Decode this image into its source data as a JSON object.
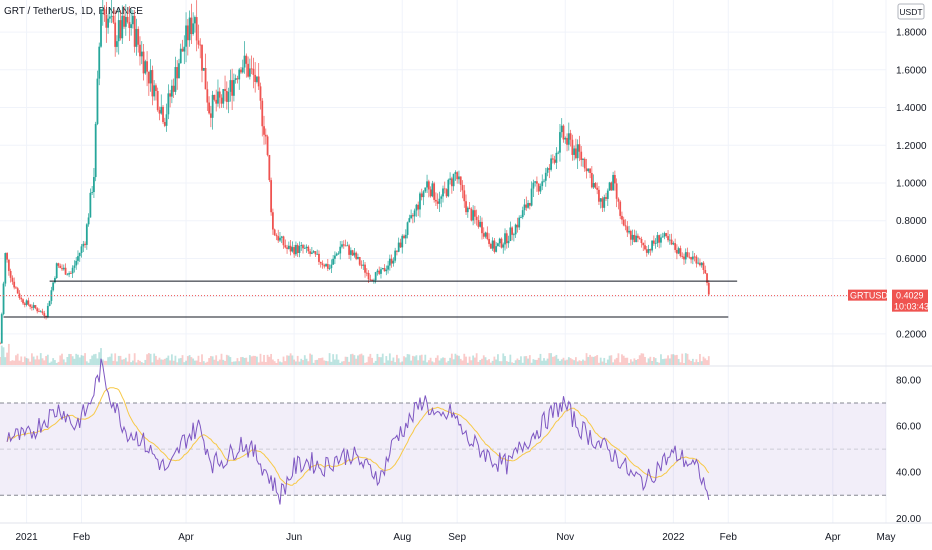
{
  "chart_data": [
    {
      "type": "candlestick",
      "title": "GRT / TetherUS, 1D, BINANCE",
      "currency_label": "USDT",
      "symbol_label": "GRTUSDT",
      "last_price": "0.4029",
      "countdown": "10:03:43",
      "y_ticks": [
        0.2,
        0.4,
        0.6,
        0.8,
        1.0,
        1.2,
        1.4,
        1.6,
        1.8
      ],
      "y_tick_labels": [
        "0.2000",
        "",
        "0.6000",
        "0.8000",
        "1.0000",
        "1.2000",
        "1.4000",
        "1.6000",
        "1.8000"
      ],
      "ylim": [
        0.03,
        1.97
      ],
      "x_range": [
        "2020-12-17",
        "2022-05-01"
      ],
      "x_ticks": [
        {
          "date": "2021-01-01",
          "label": "2021"
        },
        {
          "date": "2021-02-01",
          "label": "Feb"
        },
        {
          "date": "2021-04-01",
          "label": "Apr"
        },
        {
          "date": "2021-06-01",
          "label": "Jun"
        },
        {
          "date": "2021-08-01",
          "label": "Aug"
        },
        {
          "date": "2021-09-01",
          "label": "Sep"
        },
        {
          "date": "2021-11-01",
          "label": "Nov"
        },
        {
          "date": "2022-01-01",
          "label": "2022"
        },
        {
          "date": "2022-02-01",
          "label": "Feb"
        },
        {
          "date": "2022-04-01",
          "label": "Apr"
        },
        {
          "date": "2022-05-01",
          "label": "May"
        }
      ],
      "support_lines": [
        {
          "level": 0.48,
          "from": "2021-01-14",
          "to": "2022-02-06"
        },
        {
          "level": 0.29,
          "from": "2020-12-19",
          "to": "2022-02-01"
        }
      ],
      "close_path": [
        [
          "2020-12-17",
          0.15
        ],
        [
          "2020-12-20",
          0.62
        ],
        [
          "2020-12-24",
          0.48
        ],
        [
          "2020-12-29",
          0.38
        ],
        [
          "2021-01-05",
          0.34
        ],
        [
          "2021-01-12",
          0.3
        ],
        [
          "2021-01-18",
          0.56
        ],
        [
          "2021-01-26",
          0.52
        ],
        [
          "2021-02-03",
          0.7
        ],
        [
          "2021-02-08",
          1.05
        ],
        [
          "2021-02-12",
          1.95
        ],
        [
          "2021-02-20",
          1.78
        ],
        [
          "2021-03-01",
          1.85
        ],
        [
          "2021-03-10",
          1.6
        ],
        [
          "2021-03-20",
          1.35
        ],
        [
          "2021-03-28",
          1.65
        ],
        [
          "2021-04-06",
          1.9
        ],
        [
          "2021-04-14",
          1.4
        ],
        [
          "2021-04-24",
          1.45
        ],
        [
          "2021-05-02",
          1.65
        ],
        [
          "2021-05-10",
          1.55
        ],
        [
          "2021-05-16",
          1.25
        ],
        [
          "2021-05-20",
          0.75
        ],
        [
          "2021-05-28",
          0.65
        ],
        [
          "2021-06-06",
          0.65
        ],
        [
          "2021-06-14",
          0.6
        ],
        [
          "2021-06-21",
          0.55
        ],
        [
          "2021-06-28",
          0.68
        ],
        [
          "2021-07-06",
          0.6
        ],
        [
          "2021-07-14",
          0.5
        ],
        [
          "2021-07-20",
          0.52
        ],
        [
          "2021-07-28",
          0.62
        ],
        [
          "2021-08-06",
          0.8
        ],
        [
          "2021-08-15",
          1.0
        ],
        [
          "2021-08-22",
          0.9
        ],
        [
          "2021-08-31",
          1.05
        ],
        [
          "2021-09-07",
          0.85
        ],
        [
          "2021-09-14",
          0.78
        ],
        [
          "2021-09-22",
          0.65
        ],
        [
          "2021-09-30",
          0.72
        ],
        [
          "2021-10-06",
          0.8
        ],
        [
          "2021-10-14",
          0.96
        ],
        [
          "2021-10-22",
          1.05
        ],
        [
          "2021-10-30",
          1.25
        ],
        [
          "2021-11-06",
          1.18
        ],
        [
          "2021-11-13",
          1.1
        ],
        [
          "2021-11-21",
          0.88
        ],
        [
          "2021-11-28",
          1.0
        ],
        [
          "2021-12-04",
          0.75
        ],
        [
          "2021-12-11",
          0.7
        ],
        [
          "2021-12-18",
          0.65
        ],
        [
          "2021-12-25",
          0.72
        ],
        [
          "2022-01-01",
          0.66
        ],
        [
          "2022-01-08",
          0.61
        ],
        [
          "2022-01-14",
          0.6
        ],
        [
          "2022-01-18",
          0.56
        ],
        [
          "2022-01-21",
          0.4
        ]
      ],
      "volume_panel": true
    },
    {
      "type": "line",
      "y_ticks": [
        20,
        40,
        60,
        80
      ],
      "y_tick_labels": [
        "20.00",
        "40.00",
        "60.00",
        "80.00"
      ],
      "ylim": [
        18,
        86
      ],
      "band_upper": 70,
      "band_middle": 50,
      "band_lower": 30,
      "band_color": "#7e57c2",
      "rsi_path": [
        [
          "2020-12-21",
          56
        ],
        [
          "2021-01-01",
          55
        ],
        [
          "2021-01-10",
          62
        ],
        [
          "2021-01-20",
          68
        ],
        [
          "2021-01-28",
          60
        ],
        [
          "2021-02-05",
          68
        ],
        [
          "2021-02-12",
          85
        ],
        [
          "2021-02-18",
          72
        ],
        [
          "2021-02-26",
          58
        ],
        [
          "2021-03-06",
          55
        ],
        [
          "2021-03-14",
          47
        ],
        [
          "2021-03-22",
          40
        ],
        [
          "2021-03-30",
          53
        ],
        [
          "2021-04-08",
          60
        ],
        [
          "2021-04-16",
          44
        ],
        [
          "2021-04-24",
          46
        ],
        [
          "2021-05-02",
          53
        ],
        [
          "2021-05-10",
          48
        ],
        [
          "2021-05-18",
          38
        ],
        [
          "2021-05-24",
          30
        ],
        [
          "2021-06-01",
          42
        ],
        [
          "2021-06-09",
          45
        ],
        [
          "2021-06-17",
          42
        ],
        [
          "2021-06-25",
          46
        ],
        [
          "2021-07-03",
          48
        ],
        [
          "2021-07-12",
          42
        ],
        [
          "2021-07-20",
          38
        ],
        [
          "2021-07-28",
          55
        ],
        [
          "2021-08-05",
          62
        ],
        [
          "2021-08-13",
          72
        ],
        [
          "2021-08-21",
          62
        ],
        [
          "2021-08-29",
          66
        ],
        [
          "2021-09-06",
          55
        ],
        [
          "2021-09-14",
          50
        ],
        [
          "2021-09-22",
          45
        ],
        [
          "2021-09-30",
          43
        ],
        [
          "2021-10-08",
          52
        ],
        [
          "2021-10-16",
          58
        ],
        [
          "2021-10-24",
          65
        ],
        [
          "2021-10-31",
          70
        ],
        [
          "2021-11-08",
          60
        ],
        [
          "2021-11-16",
          55
        ],
        [
          "2021-11-24",
          50
        ],
        [
          "2021-12-01",
          46
        ],
        [
          "2021-12-09",
          38
        ],
        [
          "2021-12-17",
          36
        ],
        [
          "2021-12-25",
          44
        ],
        [
          "2022-01-02",
          48
        ],
        [
          "2022-01-10",
          44
        ],
        [
          "2022-01-16",
          40
        ],
        [
          "2022-01-21",
          28
        ]
      ],
      "rsi_color": "#7e57c2",
      "ma_color": "#f7c948"
    }
  ],
  "colors": {
    "up": "#26a69a",
    "down": "#ef5350",
    "support_line": "#131722",
    "price_line": "#ef5350",
    "ma": "#f7c948"
  }
}
